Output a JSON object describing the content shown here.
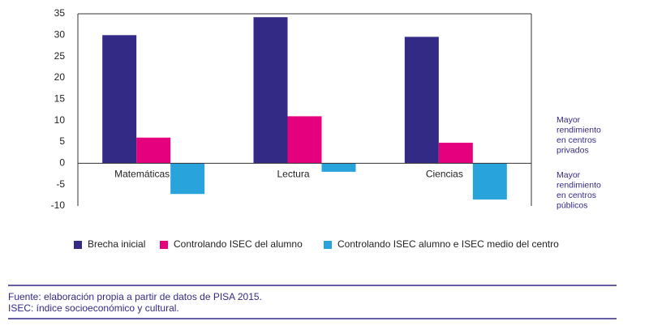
{
  "chart_data": {
    "type": "bar",
    "categories": [
      "Matemáticas",
      "Lectura",
      "Ciencias"
    ],
    "series": [
      {
        "name": "Brecha inicial",
        "color": "#332a86",
        "values": [
          30,
          34.2,
          29.6
        ]
      },
      {
        "name": "Controlando ISEC del alumno",
        "color": "#e5007e",
        "values": [
          6,
          11,
          4.8
        ]
      },
      {
        "name": "Controlando ISEC alumno e ISEC medio del centro",
        "color": "#29a3dc",
        "values": [
          -7.2,
          -2,
          -8.5
        ]
      }
    ],
    "ylim": [
      -10,
      35
    ],
    "yticks": [
      -10,
      -5,
      0,
      5,
      10,
      15,
      20,
      25,
      30,
      35
    ],
    "grid": false,
    "annotations": [
      [
        "Mayor",
        "rendimiento",
        "en centros",
        "privados"
      ],
      [
        "Mayor",
        "rendimiento",
        "en centros",
        "públicos"
      ]
    ]
  },
  "footer": [
    "Fuente: elaboración propia a partir de datos de PISA 2015.",
    "ISEC: índice socioeconómico y cultural."
  ]
}
